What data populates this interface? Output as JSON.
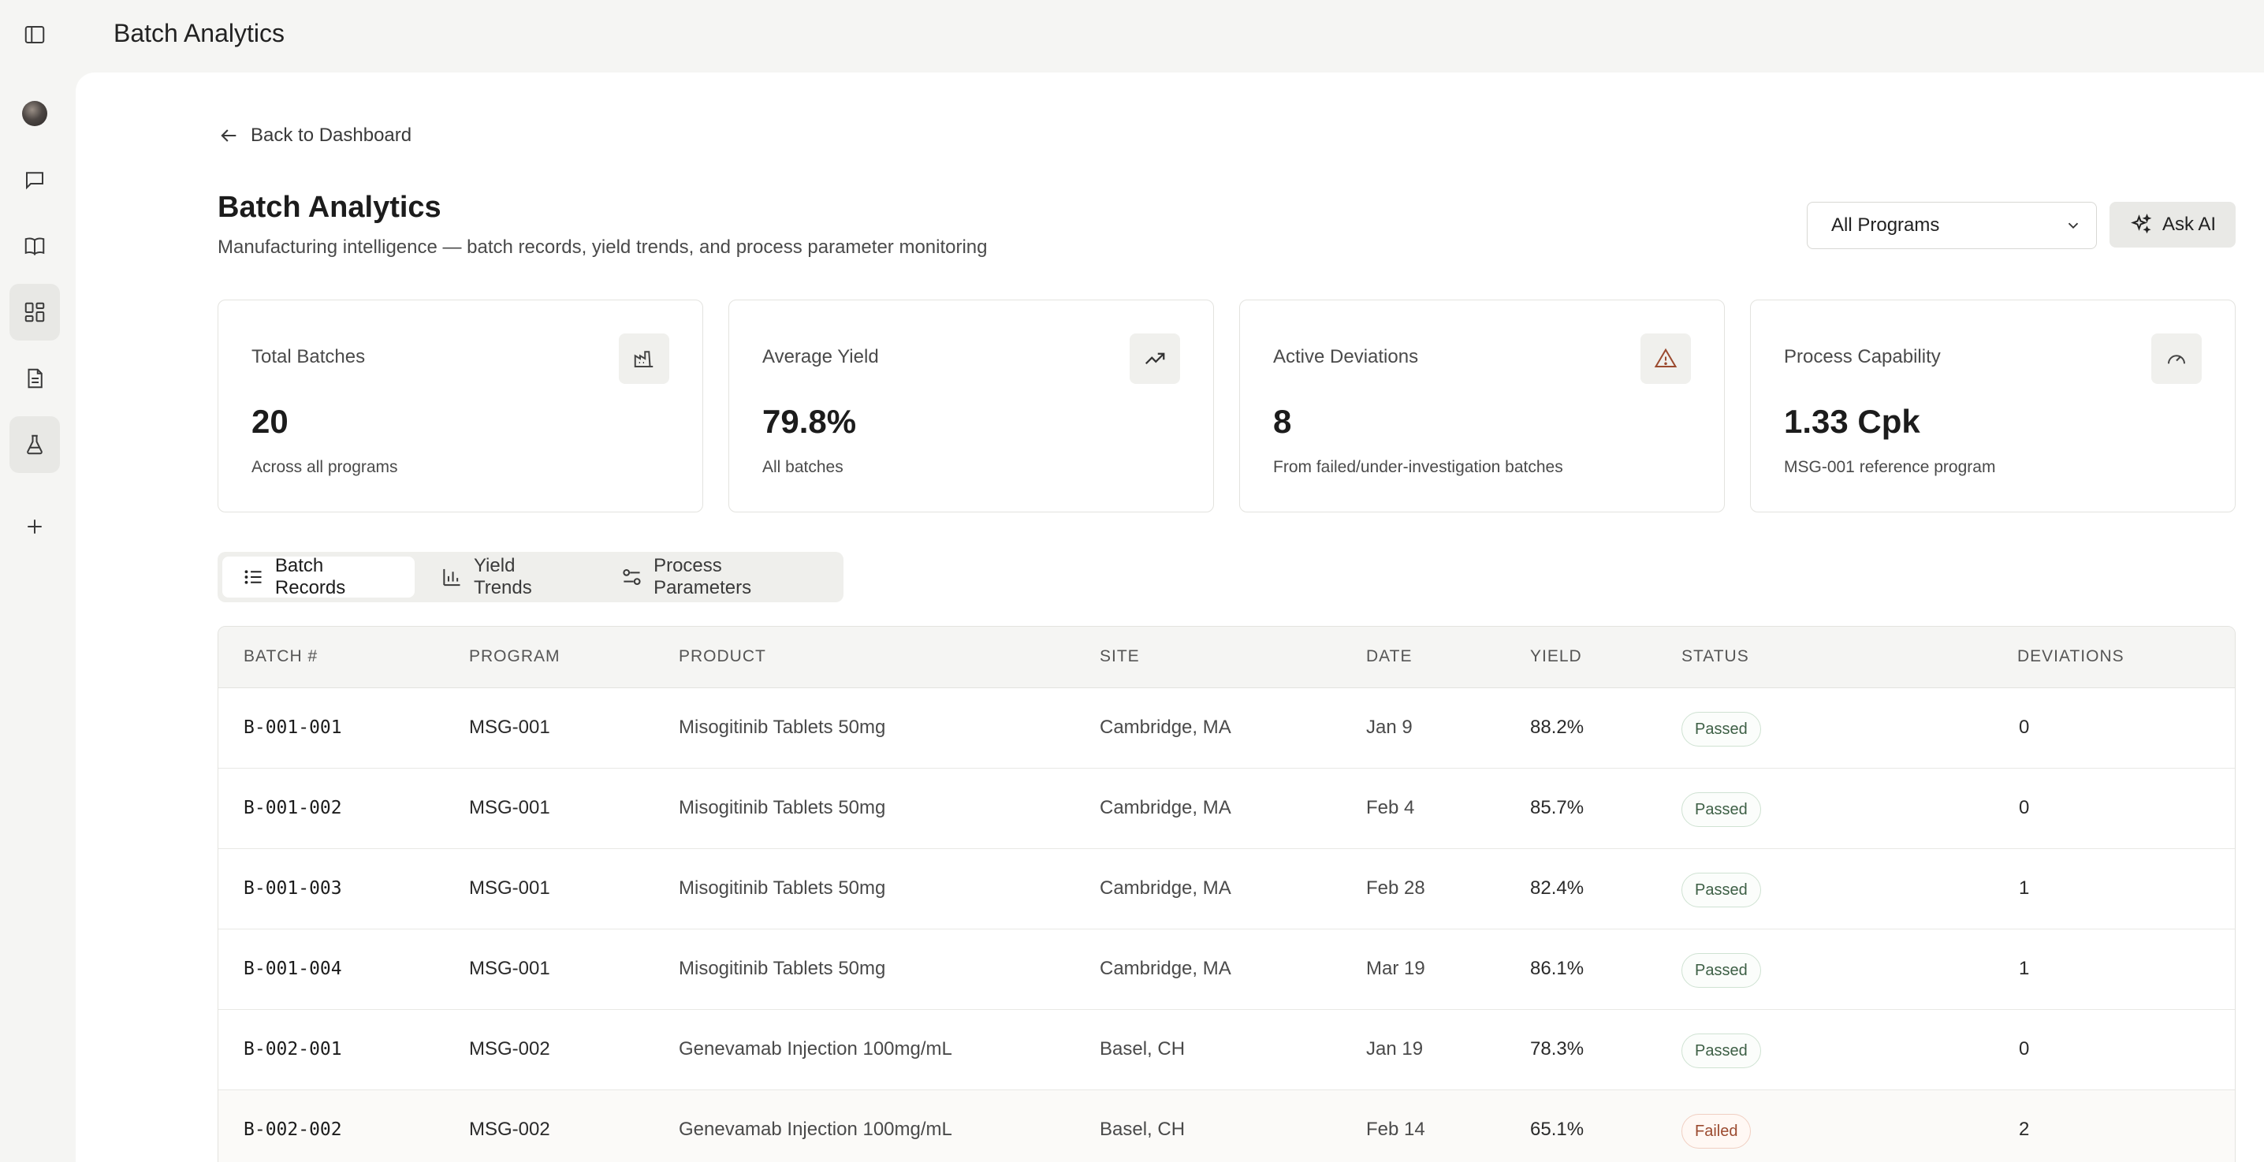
{
  "app": {
    "title": "Batch Analytics"
  },
  "sidebar": {
    "items": [
      {
        "name": "sidebar-toggle-icon"
      },
      {
        "name": "avatar"
      },
      {
        "name": "chat-icon"
      },
      {
        "name": "book-icon"
      },
      {
        "name": "dashboard-icon",
        "active": true
      },
      {
        "name": "document-icon"
      },
      {
        "name": "flask-icon",
        "active": true
      },
      {
        "name": "plus-icon"
      }
    ]
  },
  "header": {
    "back_label": "Back to Dashboard",
    "title": "Batch Analytics",
    "subtitle": "Manufacturing intelligence — batch records, yield trends, and process parameter monitoring",
    "program_select": {
      "value": "All Programs"
    },
    "ask_ai_label": "Ask AI"
  },
  "stats": [
    {
      "label": "Total Batches",
      "value": "20",
      "sub": "Across all programs",
      "icon": "factory-icon"
    },
    {
      "label": "Average Yield",
      "value": "79.8%",
      "sub": "All batches",
      "icon": "trending-up-icon"
    },
    {
      "label": "Active Deviations",
      "value": "8",
      "sub": "From failed/under-investigation batches",
      "icon": "warning-icon",
      "icon_color": "#9b4a2f"
    },
    {
      "label": "Process Capability",
      "value": "1.33 Cpk",
      "sub": "MSG-001 reference program",
      "icon": "gauge-icon"
    }
  ],
  "tabs": [
    {
      "label": "Batch Records",
      "icon": "list-icon",
      "active": true
    },
    {
      "label": "Yield Trends",
      "icon": "bar-chart-icon"
    },
    {
      "label": "Process Parameters",
      "icon": "sliders-icon"
    }
  ],
  "table": {
    "headers": [
      "BATCH #",
      "PROGRAM",
      "PRODUCT",
      "SITE",
      "DATE",
      "YIELD",
      "STATUS",
      "DEVIATIONS"
    ],
    "rows": [
      {
        "batch": "B-001-001",
        "program": "MSG-001",
        "product": "Misogitinib Tablets 50mg",
        "site": "Cambridge, MA",
        "date": "Jan 9",
        "yield": "88.2%",
        "status": "Passed",
        "deviations": "0"
      },
      {
        "batch": "B-001-002",
        "program": "MSG-001",
        "product": "Misogitinib Tablets 50mg",
        "site": "Cambridge, MA",
        "date": "Feb 4",
        "yield": "85.7%",
        "status": "Passed",
        "deviations": "0"
      },
      {
        "batch": "B-001-003",
        "program": "MSG-001",
        "product": "Misogitinib Tablets 50mg",
        "site": "Cambridge, MA",
        "date": "Feb 28",
        "yield": "82.4%",
        "status": "Passed",
        "deviations": "1"
      },
      {
        "batch": "B-001-004",
        "program": "MSG-001",
        "product": "Misogitinib Tablets 50mg",
        "site": "Cambridge, MA",
        "date": "Mar 19",
        "yield": "86.1%",
        "status": "Passed",
        "deviations": "1"
      },
      {
        "batch": "B-002-001",
        "program": "MSG-002",
        "product": "Genevamab Injection 100mg/mL",
        "site": "Basel, CH",
        "date": "Jan 19",
        "yield": "78.3%",
        "status": "Passed",
        "deviations": "0"
      },
      {
        "batch": "B-002-002",
        "program": "MSG-002",
        "product": "Genevamab Injection 100mg/mL",
        "site": "Basel, CH",
        "date": "Feb 14",
        "yield": "65.1%",
        "status": "Failed",
        "deviations": "2"
      }
    ]
  }
}
